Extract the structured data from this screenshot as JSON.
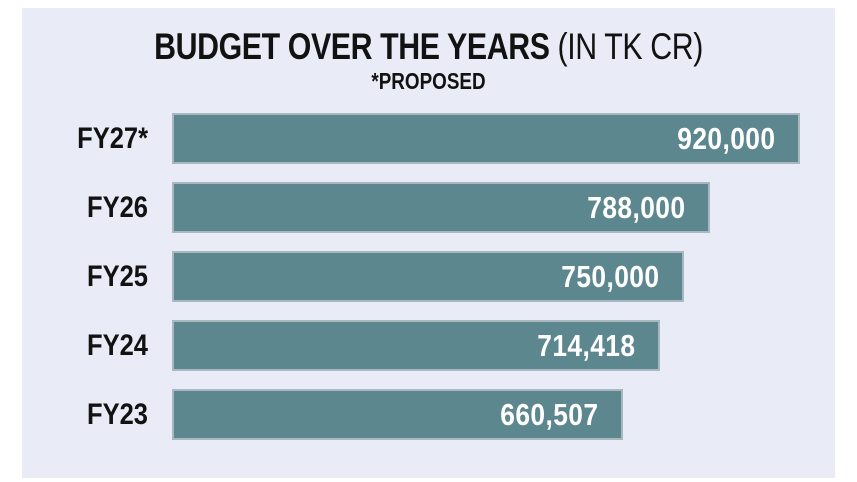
{
  "header": {
    "title": "BUDGET OVER THE YEARS",
    "unit": "(IN TK CR)",
    "subtitle": "*PROPOSED"
  },
  "chart_data": {
    "type": "bar",
    "orientation": "horizontal",
    "title": "BUDGET OVER THE YEARS (IN TK CR)",
    "subtitle": "*PROPOSED",
    "unit": "TK CR",
    "categories": [
      "FY27*",
      "FY26",
      "FY25",
      "FY24",
      "FY23"
    ],
    "values": [
      920000,
      788000,
      750000,
      714418,
      660507
    ],
    "value_labels": [
      "920,000",
      "788,000",
      "750,000",
      "714,418",
      "660,507"
    ],
    "xlim": [
      0,
      920000
    ],
    "grid": false,
    "legend": false,
    "colors": {
      "bar": "#5c878f",
      "panel_background": "#e9ecf6",
      "page_background": "#ffffff",
      "value_text": "#ffffff",
      "label_text": "#121212"
    }
  }
}
